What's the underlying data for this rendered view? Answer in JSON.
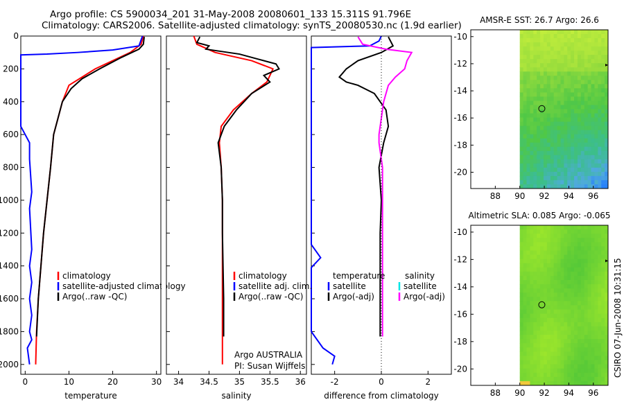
{
  "header": {
    "line1": "Argo profile: CS 5900034_201 31-May-2008 20080601_133 15.311S 91.796E",
    "line2": "Climatology: CARS2006. Satellite-adjusted climatology: synTS_20080530.nc (1.9d earlier)"
  },
  "colors": {
    "climatology": "#ff0000",
    "satellite": "#0000ff",
    "argo": "#000000",
    "argo_adj_salinity": "#ff00ff",
    "satellite_salinity": "#00e5e5"
  },
  "chart_data": [
    {
      "id": "temperature",
      "type": "line",
      "xlabel": "temperature",
      "xlim": [
        -1,
        31
      ],
      "ylim": [
        2060,
        0
      ],
      "xticks": [
        "0",
        "10",
        "20",
        "30"
      ],
      "xtick_values": [
        0,
        10,
        20,
        30
      ],
      "yticks": [
        "0",
        "200",
        "400",
        "600",
        "800",
        "1000",
        "1200",
        "1400",
        "1600",
        "1800",
        "2000"
      ],
      "ytick_values": [
        0,
        200,
        400,
        600,
        800,
        1000,
        1200,
        1400,
        1600,
        1800,
        2000
      ],
      "legend": [
        "climatology",
        "satellite-adjusted climatology",
        "Argo(..raw -QC)"
      ],
      "series": [
        {
          "name": "climatology",
          "color": "#ff0000",
          "x": [
            27,
            26.5,
            24,
            20,
            16,
            13,
            10,
            8.5,
            7.5,
            6.5,
            5.8,
            5,
            4.2,
            3.6,
            3,
            2.6,
            2.4
          ],
          "y": [
            0,
            50,
            100,
            150,
            200,
            250,
            300,
            400,
            500,
            600,
            800,
            1000,
            1200,
            1400,
            1600,
            1800,
            2000
          ]
        },
        {
          "name": "satellite-adjusted climatology",
          "color": "#0000ff",
          "x": [
            26.8,
            26,
            20,
            12,
            5,
            -1,
            -1,
            1,
            1,
            1.5,
            1,
            1.5,
            1,
            1.5,
            1,
            1.5,
            1,
            1.5,
            0.5,
            1
          ],
          "y": [
            0,
            60,
            85,
            100,
            110,
            115,
            550,
            650,
            750,
            950,
            1050,
            1300,
            1400,
            1500,
            1600,
            1700,
            1800,
            1850,
            1900,
            2000
          ]
        },
        {
          "name": "Argo(..raw -QC)",
          "color": "#000000",
          "x": [
            27.2,
            27,
            26,
            22,
            17,
            13,
            10.5,
            8.5,
            7.5,
            6.5,
            5.8,
            5,
            4.2,
            3.6,
            3,
            2.6
          ],
          "y": [
            5,
            50,
            80,
            130,
            200,
            260,
            320,
            400,
            500,
            600,
            800,
            1000,
            1200,
            1400,
            1600,
            1830
          ]
        }
      ]
    },
    {
      "id": "salinity",
      "type": "line",
      "xlabel": "salinity",
      "xlim": [
        33.8,
        36.1
      ],
      "ylim": [
        2060,
        0
      ],
      "xticks": [
        "34",
        "34.5",
        "35",
        "35.5",
        "36"
      ],
      "xtick_values": [
        34,
        34.5,
        35,
        35.5,
        36
      ],
      "legend": [
        "climatology",
        "satellite adj. clim.",
        "Argo(..raw -QC)"
      ],
      "annotations": [
        "Argo AUSTRALIA",
        "PI: Susan Wijffels"
      ],
      "series": [
        {
          "name": "climatology",
          "color": "#ff0000",
          "x": [
            34.25,
            34.3,
            34.6,
            35.2,
            35.55,
            35.45,
            35.2,
            34.9,
            34.7,
            34.67,
            34.7,
            34.72,
            34.72,
            34.72,
            34.72,
            34.72
          ],
          "y": [
            0,
            50,
            100,
            150,
            200,
            280,
            350,
            450,
            550,
            650,
            800,
            1000,
            1200,
            1400,
            1600,
            2000
          ]
        },
        {
          "name": "Argo(..raw -QC)",
          "color": "#000000",
          "x": [
            34.35,
            34.3,
            34.5,
            34.45,
            35.0,
            35.3,
            35.6,
            35.65,
            35.4,
            35.5,
            35.2,
            34.95,
            34.75,
            34.65,
            34.7,
            34.72,
            34.72,
            34.73,
            34.74,
            34.74
          ],
          "y": [
            5,
            40,
            60,
            80,
            110,
            140,
            170,
            200,
            240,
            280,
            350,
            450,
            550,
            650,
            800,
            1000,
            1200,
            1400,
            1600,
            1830
          ]
        }
      ]
    },
    {
      "id": "difference",
      "type": "line",
      "xlabel": "difference from climatology",
      "xlim": [
        -3,
        3
      ],
      "ylim": [
        2060,
        0
      ],
      "xticks": [
        "-2",
        "0",
        "2"
      ],
      "xtick_values": [
        -2,
        0,
        2
      ],
      "legend_temperature_title": "temperature",
      "legend_salinity_title": "salinity",
      "legend": [
        "satellite",
        "Argo(-adj)",
        "satellite",
        "Argo(-adj)"
      ],
      "series": [
        {
          "name": "temperature satellite",
          "color": "#0000ff",
          "x": [
            0,
            -0.1,
            -0.5,
            -3,
            -3,
            -2.6,
            -3,
            -3,
            -2.5,
            -2,
            -2.1
          ],
          "y": [
            0,
            30,
            60,
            70,
            1270,
            1350,
            1410,
            1800,
            1900,
            1950,
            2000
          ]
        },
        {
          "name": "temperature Argo(-adj)",
          "color": "#000000",
          "x": [
            0.3,
            0.5,
            0,
            -1,
            -1.5,
            -1.8,
            -1.5,
            -1,
            -0.3,
            0.2,
            0.3,
            0.1,
            -0.1,
            0,
            -0.05,
            -0.05,
            -0.05
          ],
          "y": [
            5,
            60,
            100,
            150,
            200,
            250,
            280,
            300,
            350,
            450,
            550,
            650,
            800,
            1000,
            1200,
            1600,
            1830
          ]
        },
        {
          "name": "salinity Argo(-adj)",
          "color": "#ff00ff",
          "x": [
            -1,
            -0.8,
            0.2,
            1.3,
            1.1,
            1.0,
            0.6,
            0.3,
            0.1,
            0,
            -0.1,
            -0.1,
            0.05,
            0.05,
            0.05,
            0.05
          ],
          "y": [
            5,
            50,
            80,
            100,
            150,
            200,
            250,
            300,
            400,
            500,
            600,
            650,
            800,
            1200,
            1600,
            1830
          ]
        }
      ]
    },
    {
      "id": "sst-map",
      "type": "heatmap",
      "title": "AMSR-E SST: 26.7 Argo: 26.6",
      "xlim": [
        86,
        97.2
      ],
      "ylim": [
        -21.2,
        -9.5
      ],
      "xticks": [
        "88",
        "90",
        "92",
        "94",
        "96"
      ],
      "xtick_values": [
        88,
        90,
        92,
        94,
        96
      ],
      "yticks": [
        "-10",
        "-12",
        "-14",
        "-16",
        "-18",
        "-20"
      ],
      "ytick_values": [
        -10,
        -12,
        -14,
        -16,
        -18,
        -20
      ],
      "data_xlim": [
        90,
        97.2
      ],
      "float_position": [
        91.796,
        -15.311
      ]
    },
    {
      "id": "sla-map",
      "type": "heatmap",
      "title": "Altimetric SLA: 0.085 Argo: -0.065",
      "xlim": [
        86,
        97.2
      ],
      "ylim": [
        -21.2,
        -9.5
      ],
      "xticks": [
        "88",
        "90",
        "92",
        "94",
        "96"
      ],
      "xtick_values": [
        88,
        90,
        92,
        94,
        96
      ],
      "yticks": [
        "-10",
        "-12",
        "-14",
        "-16",
        "-18",
        "-20"
      ],
      "ytick_values": [
        -10,
        -12,
        -14,
        -16,
        -18,
        -20
      ],
      "data_xlim": [
        90,
        97.2
      ],
      "float_position": [
        91.796,
        -15.311
      ],
      "side_label": "CSIRO 07-Jun-2008 10:31:15"
    }
  ]
}
